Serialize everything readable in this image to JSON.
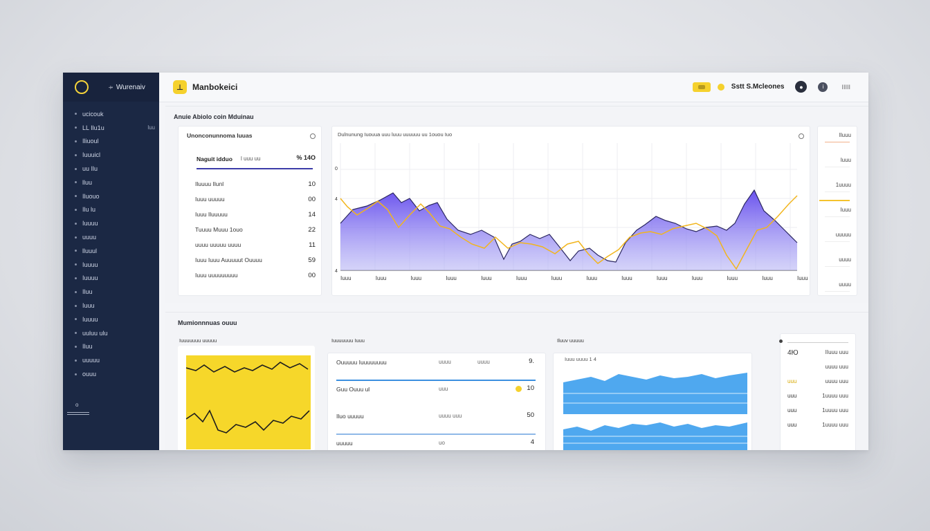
{
  "sidebar": {
    "brand": "Wurenaiv",
    "items": [
      {
        "label": "ucicouk",
        "badge": ""
      },
      {
        "label": "LL Ilu1u",
        "badge": "luu"
      },
      {
        "label": "Iliuoul",
        "badge": ""
      },
      {
        "label": "Iuuuicl",
        "badge": ""
      },
      {
        "label": "uu Ilu",
        "badge": ""
      },
      {
        "label": "lluu",
        "badge": ""
      },
      {
        "label": "Iluouo",
        "badge": ""
      },
      {
        "label": "Ilu lu",
        "badge": ""
      },
      {
        "label": "Iuuuu",
        "badge": ""
      },
      {
        "label": "uuuu",
        "badge": ""
      },
      {
        "label": "lluuul",
        "badge": ""
      },
      {
        "label": "Iuuuu",
        "badge": ""
      },
      {
        "label": "Iuuuu",
        "badge": ""
      },
      {
        "label": "Iluu",
        "badge": ""
      },
      {
        "label": "Iuuu",
        "badge": ""
      },
      {
        "label": "Iuuuu",
        "badge": ""
      },
      {
        "label": "uuluu ulu",
        "badge": ""
      },
      {
        "label": "Iluu",
        "badge": ""
      },
      {
        "label": "uuuuu",
        "badge": ""
      },
      {
        "label": "ouuu",
        "badge": ""
      }
    ],
    "footer": "o"
  },
  "topbar": {
    "app_title": "Manbokeici",
    "account": "Sstt S.Mcleones",
    "menu": "IIIII"
  },
  "section1": {
    "title": "Anuie Abiolo coin Mduinau",
    "left_card": {
      "title": "Unonconunnoma luuas",
      "search_label": "Naguit idduo",
      "search_value": "l uuu uu",
      "search_count": "% 14O",
      "rows": [
        {
          "label": "Iluuuu Ilunl",
          "value": "10"
        },
        {
          "label": "Iuuu uuuuu",
          "value": "00"
        },
        {
          "label": "Iuuu Iluuuuu",
          "value": "14"
        },
        {
          "label": "Tuuuu Muuu 1ouo",
          "value": "22"
        },
        {
          "label": "uuuu uuuuu uuuu",
          "value": "11"
        },
        {
          "label": "Iuuu Iuuu Auuuuut Ouuuu",
          "value": "59"
        },
        {
          "label": "Iuuu uuuuuuuuu",
          "value": "00"
        }
      ]
    },
    "chart": {
      "title": "Dulnunung Iuouua uuu luuu uuuuuu uu 1ouou Iuo",
      "y_ticks": [
        "0",
        "4",
        "4"
      ],
      "x_labels": [
        "Iuuu",
        "Iuuu",
        "Iuuu",
        "Iuuu",
        "Iuuu",
        "Iuuu",
        "Iuuu",
        "Iuuu",
        "Iuuu",
        "Iuuu",
        "Iuuu",
        "Iuuu",
        "Iuuu",
        "Iuuu"
      ]
    },
    "right_rail": [
      "Iluuu",
      "luuu",
      "1uuuu",
      "Iuuu",
      "uuuuu",
      "uuuu",
      "uuuu"
    ]
  },
  "section2": {
    "title": "Mumionnnuas ouuu",
    "card1_title": "Iuuuuuuu uuuuu",
    "card2": {
      "title": "Iuuuuuuu Iuuu",
      "rows": [
        {
          "label": "Ouuuuu Iuuuuuuuu",
          "mid": "uuuu",
          "right": "uuuu",
          "value": "9."
        },
        {
          "label": "Guu Ouuu ul",
          "mid": "uuu",
          "right": "",
          "value": "10"
        },
        {
          "label": "Iluo uuuuu",
          "mid": "uuuu uuu",
          "right": "",
          "value": "50"
        },
        {
          "label": "uuuuu",
          "mid": "uo",
          "right": "",
          "value": "4"
        }
      ]
    },
    "card3_title": "Iluuv uuuuu",
    "card3_header": "Iuuu uuuu 1 4",
    "right_list": [
      {
        "left": "4Ю",
        "right": "IIuuu uuu"
      },
      {
        "left": "",
        "right": "uuuu uuu"
      },
      {
        "left": "uuu",
        "right": "uuuu uuu"
      },
      {
        "left": "uuu",
        "right": "1uuuu uuu"
      },
      {
        "left": "uuu",
        "right": "1uuuu uuu"
      },
      {
        "left": "uuu",
        "right": "1uuuu uuu"
      }
    ]
  },
  "colors": {
    "sidebar": "#1b2844",
    "accent_yellow": "#f5d12d",
    "purple_area": "#6f5cf0",
    "blue_area": "#4aa7ef"
  }
}
